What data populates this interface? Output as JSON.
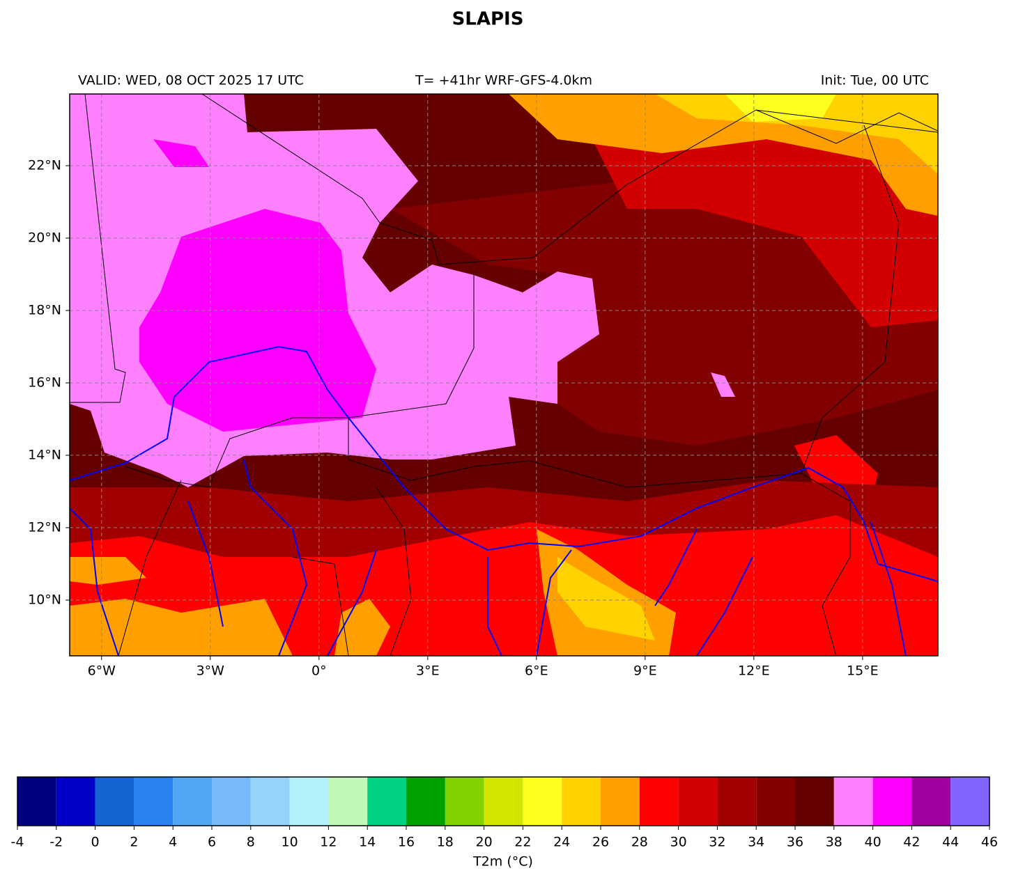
{
  "title": "SLAPIS",
  "header": {
    "valid": "VALID: WED, 08 OCT 2025 17 UTC",
    "run": "T= +41hr WRF-GFS-4.0km",
    "init": "Init: Tue, 00 UTC"
  },
  "map": {
    "xlim": [
      -6.88,
      17.08
    ],
    "ylim": [
      8.46,
      23.98
    ],
    "grid": true,
    "xticks": [
      {
        "value": -6,
        "label": "6°W"
      },
      {
        "value": -3,
        "label": "3°W"
      },
      {
        "value": 0,
        "label": "0°"
      },
      {
        "value": 3,
        "label": "3°E"
      },
      {
        "value": 6,
        "label": "6°E"
      },
      {
        "value": 9,
        "label": "9°E"
      },
      {
        "value": 12,
        "label": "12°E"
      },
      {
        "value": 15,
        "label": "15°E"
      }
    ],
    "yticks": [
      {
        "value": 10,
        "label": "10°N"
      },
      {
        "value": 12,
        "label": "12°N"
      },
      {
        "value": 14,
        "label": "14°N"
      },
      {
        "value": 16,
        "label": "16°N"
      },
      {
        "value": 18,
        "label": "18°N"
      },
      {
        "value": 20,
        "label": "20°N"
      },
      {
        "value": 22,
        "label": "22°N"
      }
    ]
  },
  "colorbar": {
    "label": "T2m (°C)",
    "boundaries": [
      -4,
      -2,
      0,
      2,
      4,
      6,
      8,
      10,
      12,
      14,
      16,
      18,
      20,
      22,
      24,
      26,
      28,
      30,
      32,
      34,
      36,
      38,
      40,
      42,
      44,
      46
    ],
    "colors": [
      "#000080",
      "#0000c8",
      "#1464d2",
      "#2882f0",
      "#50a5f5",
      "#78b9fa",
      "#96d2fa",
      "#b4f0fa",
      "#c0f8b8",
      "#00d282",
      "#00a000",
      "#82d200",
      "#d2e600",
      "#ffff20",
      "#ffd200",
      "#ffa000",
      "#ff0000",
      "#d20000",
      "#a00000",
      "#820000",
      "#640000",
      "#ff80ff",
      "#ff00ff",
      "#a000a0",
      "#8264ff"
    ]
  }
}
